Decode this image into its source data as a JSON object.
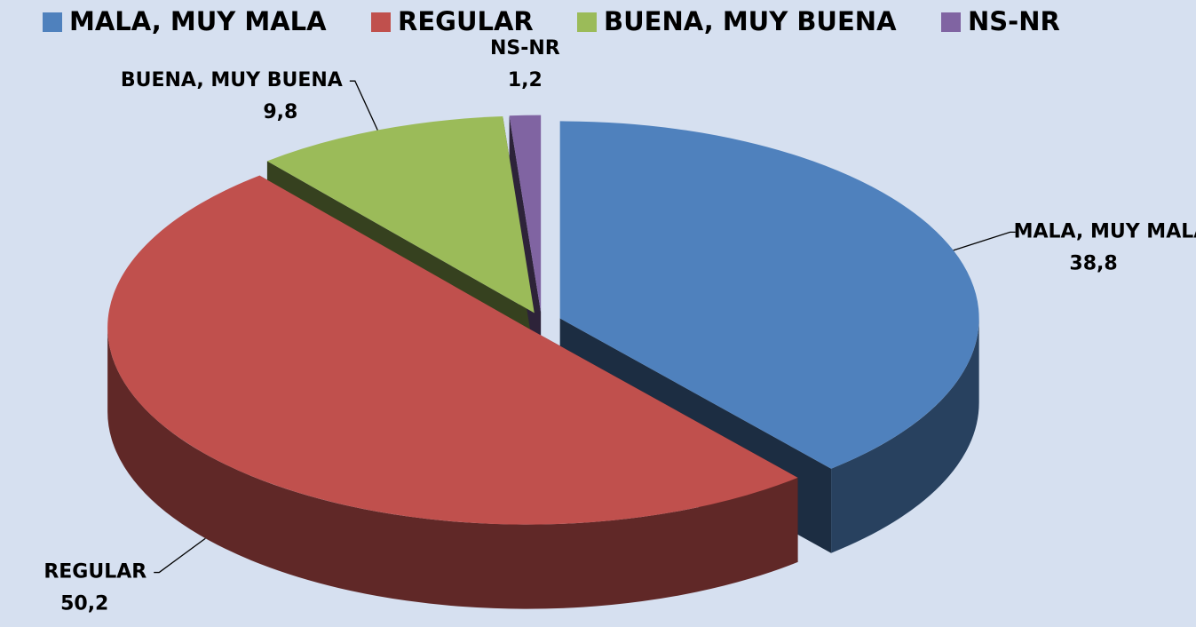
{
  "chart_data": {
    "type": "pie",
    "categories": [
      "MALA, MUY MALA",
      "REGULAR",
      "BUENA, MUY BUENA",
      "NS-NR"
    ],
    "values": [
      38.8,
      50.2,
      9.8,
      1.2
    ],
    "value_labels": [
      "38,8",
      "50,2",
      "9,8",
      "1,2"
    ],
    "colors": [
      "#4f81bd",
      "#c0504d",
      "#9bbb59",
      "#8064a2"
    ],
    "legend": "top"
  }
}
